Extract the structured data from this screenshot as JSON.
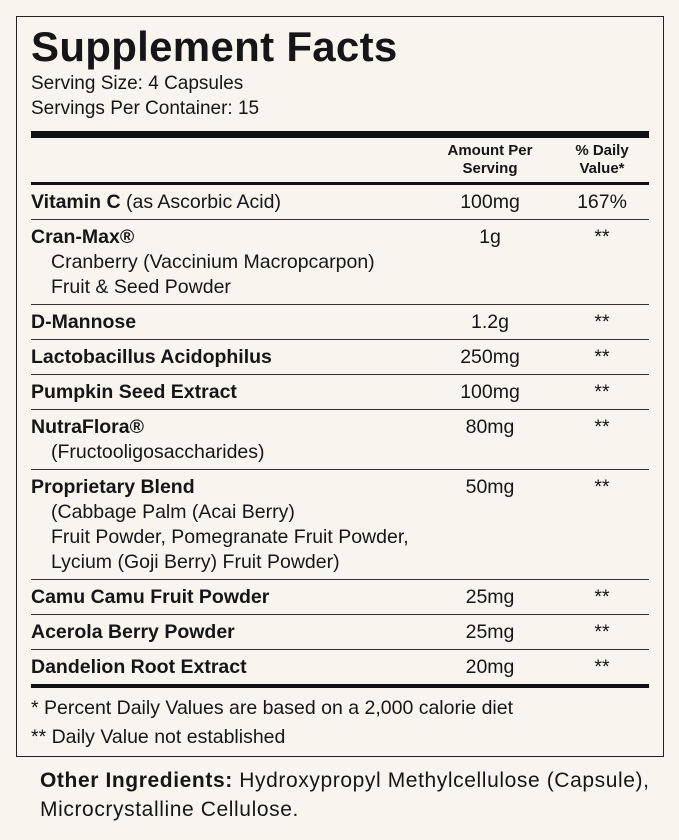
{
  "header": {
    "title": "Supplement Facts",
    "serving_size": "Serving Size: 4 Capsules",
    "servings_per_container": "Servings Per Container: 15"
  },
  "table": {
    "columns": {
      "amount": [
        "Amount Per",
        "Serving"
      ],
      "dv": [
        "% Daily",
        "Value*"
      ]
    },
    "rows": [
      {
        "name": "Vitamin C",
        "note": "(as Ascorbic Acid)",
        "amount": "100mg",
        "dv": "167%"
      },
      {
        "name": "Cran-Max®",
        "sub": [
          "Cranberry (Vaccinium Macropcarpon)",
          "Fruit & Seed Powder"
        ],
        "amount": "1g",
        "dv": "**"
      },
      {
        "name": "D-Mannose",
        "amount": "1.2g",
        "dv": "**"
      },
      {
        "name": "Lactobacillus Acidophilus",
        "amount": "250mg",
        "dv": "**"
      },
      {
        "name": "Pumpkin Seed Extract",
        "amount": "100mg",
        "dv": "**"
      },
      {
        "name": "NutraFlora®",
        "sub": [
          "(Fructooligosaccharides)"
        ],
        "amount": "80mg",
        "dv": "**"
      },
      {
        "name": "Proprietary Blend",
        "sub": [
          "(Cabbage Palm (Acai Berry)",
          "Fruit Powder, Pomegranate Fruit Powder,",
          "Lycium (Goji Berry) Fruit Powder)"
        ],
        "amount": "50mg",
        "dv": "**"
      },
      {
        "name": "Camu Camu Fruit Powder",
        "amount": "25mg",
        "dv": "**"
      },
      {
        "name": "Acerola Berry Powder",
        "amount": "25mg",
        "dv": "**"
      },
      {
        "name": "Dandelion Root Extract",
        "amount": "20mg",
        "dv": "**"
      }
    ]
  },
  "footnotes": [
    "*  Percent Daily Values are based on a 2,000 calorie diet",
    "** Daily Value not established"
  ],
  "other_ingredients": {
    "label": "Other Ingredients:",
    "text": "Hydroxypropyl Methylcellulose (Capsule), Microcrystalline Cellulose."
  }
}
